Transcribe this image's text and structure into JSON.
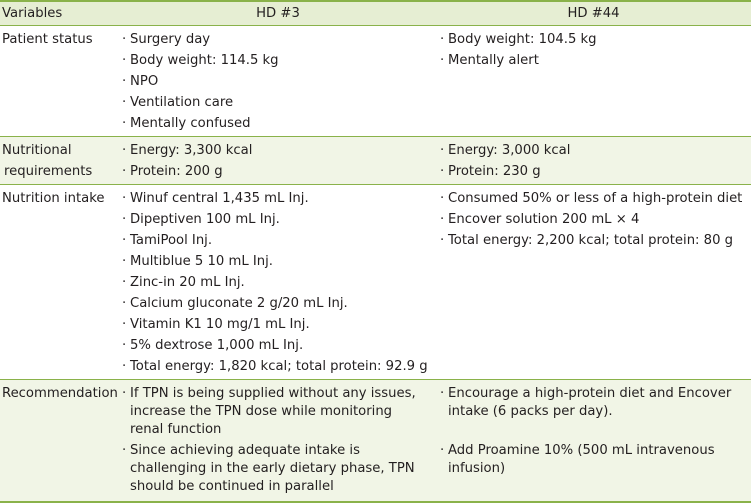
{
  "header": {
    "col1": "Variables",
    "col2": "HD #3",
    "col3": "HD #44"
  },
  "rows": [
    {
      "label": [
        "Patient status"
      ],
      "hd3": [
        "Surgery day",
        "Body weight: 114.5 kg",
        "NPO",
        "Ventilation care",
        "Mentally confused"
      ],
      "hd44": [
        "Body weight: 104.5 kg",
        "Mentally alert"
      ]
    },
    {
      "label": [
        "Nutritional",
        "requirements"
      ],
      "hd3": [
        "Energy: 3,300 kcal",
        "Protein: 200 g"
      ],
      "hd44": [
        "Energy: 3,000 kcal",
        "Protein: 230 g"
      ]
    },
    {
      "label": [
        "Nutrition intake"
      ],
      "hd3": [
        "Winuf central 1,435 mL Inj.",
        "Dipeptiven 100 mL Inj.",
        "TamiPool Inj.",
        "Multiblue 5 10 mL Inj.",
        "Zinc-in 20 mL Inj.",
        "Calcium gluconate 2 g/20 mL Inj.",
        "Vitamin K1 10 mg/1 mL Inj.",
        "5% dextrose 1,000 mL Inj.",
        "Total energy: 1,820 kcal; total protein: 92.9 g"
      ],
      "hd44": [
        "Consumed 50% or less of a high-protein diet",
        "Encover solution 200 mL × 4",
        "Total energy: 2,200 kcal; total protein: 80 g"
      ]
    },
    {
      "label": [
        "Recommendation"
      ],
      "hd3": [
        "If TPN is being supplied without any issues, increase the TPN dose while monitoring renal function",
        "Since achieving adequate intake is challenging in the early dietary phase, TPN should be continued in parallel"
      ],
      "hd44": [
        "Encourage a high-protein diet and Encover intake (6 packs per day).",
        "Add Proamine 10% (500 mL intravenous infusion)"
      ]
    }
  ]
}
